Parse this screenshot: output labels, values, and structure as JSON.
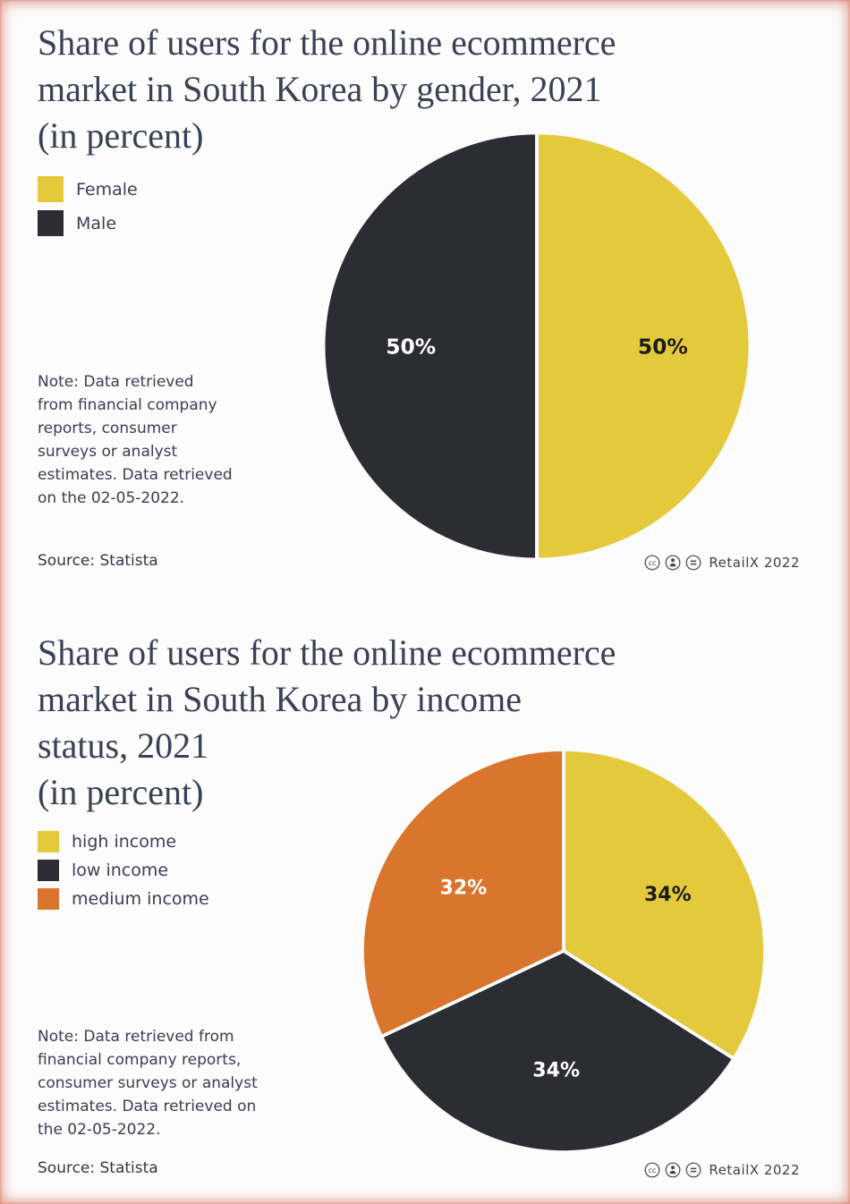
{
  "page": {
    "background": "#fcfcfc",
    "edge_glow_color": "#c9442e"
  },
  "chart_data": [
    {
      "type": "pie",
      "title": "Share of users for the online ecommerce\nmarket in South Korea by gender, 2021\n(in percent)",
      "value_suffix": "%",
      "start_angle_deg": -90,
      "legend_position": "left",
      "slices": [
        {
          "label": "Female",
          "value": 50,
          "color": "#e4c93d",
          "label_color": "#1c1c1c"
        },
        {
          "label": "Male",
          "value": 50,
          "color": "#2b2d33",
          "label_color": "#ffffff"
        }
      ],
      "note": "Note: Data retrieved\nfrom financial company\nreports, consumer\nsurveys or analyst\nestimates. Data retrieved\non the 02-05-2022.",
      "source": "Source: Statista",
      "attribution": "RetailX 2022"
    },
    {
      "type": "pie",
      "title": "Share of users for the online ecommerce\nmarket in South Korea by income\nstatus, 2021\n(in percent)",
      "value_suffix": "%",
      "start_angle_deg": -90,
      "legend_position": "left",
      "slices": [
        {
          "label": "high income",
          "value": 34,
          "color": "#e4c93d",
          "label_color": "#1c1c1c"
        },
        {
          "label": "low income",
          "value": 34,
          "color": "#2b2d33",
          "label_color": "#ffffff"
        },
        {
          "label": "medium income",
          "value": 32,
          "color": "#d9752c",
          "label_color": "#ffffff"
        }
      ],
      "note": "Note: Data retrieved from\nfinancial company reports,\nconsumer surveys or analyst\nestimates. Data retrieved on\nthe 02-05-2022.",
      "source": "Source: Statista",
      "attribution": "RetailX 2022"
    }
  ]
}
